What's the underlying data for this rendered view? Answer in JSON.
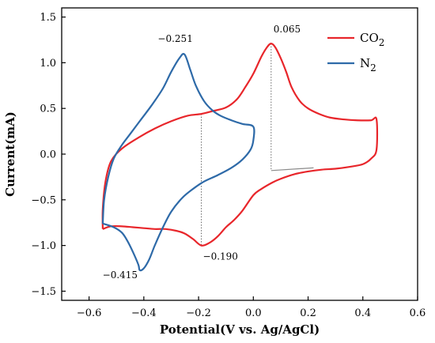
{
  "chart_data": {
    "type": "line",
    "xlabel": "Potential(V vs. Ag/AgCl)",
    "ylabel": "Current(mA)",
    "xlim": [
      -0.7,
      0.6
    ],
    "ylim": [
      -1.6,
      1.6
    ],
    "x_ticks": [
      -0.6,
      -0.4,
      -0.2,
      0.0,
      0.2,
      0.4,
      0.6
    ],
    "x_tick_labels": [
      "−0.6",
      "−0.4",
      "−0.2",
      "0.0",
      "0.2",
      "0.4",
      "0.6"
    ],
    "y_ticks": [
      -1.5,
      -1.0,
      -0.5,
      0.0,
      0.5,
      1.0,
      1.5
    ],
    "y_tick_labels": [
      "−1.5",
      "−1.0",
      "−0.5",
      "0.0",
      "0.5",
      "1.0",
      "1.5"
    ],
    "grid": false,
    "legend_position": "top-right",
    "series": [
      {
        "name": "CO2",
        "color": "#e8262b",
        "points": [
          [
            -0.55,
            -0.82
          ],
          [
            -0.52,
            -0.79
          ],
          [
            -0.48,
            -0.79
          ],
          [
            -0.44,
            -0.8
          ],
          [
            -0.4,
            -0.81
          ],
          [
            -0.36,
            -0.82
          ],
          [
            -0.32,
            -0.82
          ],
          [
            -0.28,
            -0.84
          ],
          [
            -0.25,
            -0.87
          ],
          [
            -0.22,
            -0.93
          ],
          [
            -0.19,
            -1.0
          ],
          [
            -0.16,
            -0.97
          ],
          [
            -0.13,
            -0.9
          ],
          [
            -0.1,
            -0.8
          ],
          [
            -0.07,
            -0.72
          ],
          [
            -0.04,
            -0.62
          ],
          [
            0.0,
            -0.45
          ],
          [
            0.03,
            -0.38
          ],
          [
            0.07,
            -0.31
          ],
          [
            0.1,
            -0.27
          ],
          [
            0.15,
            -0.22
          ],
          [
            0.2,
            -0.19
          ],
          [
            0.25,
            -0.17
          ],
          [
            0.3,
            -0.16
          ],
          [
            0.35,
            -0.14
          ],
          [
            0.4,
            -0.11
          ],
          [
            0.43,
            -0.05
          ],
          [
            0.45,
            0.05
          ],
          [
            0.45,
            0.38
          ],
          [
            0.43,
            0.37
          ],
          [
            0.38,
            0.37
          ],
          [
            0.33,
            0.38
          ],
          [
            0.28,
            0.4
          ],
          [
            0.24,
            0.44
          ],
          [
            0.2,
            0.5
          ],
          [
            0.17,
            0.58
          ],
          [
            0.14,
            0.73
          ],
          [
            0.12,
            0.9
          ],
          [
            0.1,
            1.05
          ],
          [
            0.08,
            1.17
          ],
          [
            0.065,
            1.21
          ],
          [
            0.05,
            1.17
          ],
          [
            0.03,
            1.07
          ],
          [
            0.0,
            0.88
          ],
          [
            -0.03,
            0.73
          ],
          [
            -0.06,
            0.6
          ],
          [
            -0.1,
            0.51
          ],
          [
            -0.15,
            0.47
          ],
          [
            -0.19,
            0.44
          ],
          [
            -0.24,
            0.42
          ],
          [
            -0.3,
            0.36
          ],
          [
            -0.36,
            0.28
          ],
          [
            -0.42,
            0.18
          ],
          [
            -0.48,
            0.06
          ],
          [
            -0.52,
            -0.08
          ],
          [
            -0.54,
            -0.3
          ],
          [
            -0.55,
            -0.6
          ],
          [
            -0.55,
            -0.82
          ]
        ]
      },
      {
        "name": "N2",
        "color": "#2e6aa8",
        "points": [
          [
            -0.55,
            -0.76
          ],
          [
            -0.51,
            -0.8
          ],
          [
            -0.48,
            -0.86
          ],
          [
            -0.46,
            -0.95
          ],
          [
            -0.44,
            -1.07
          ],
          [
            -0.42,
            -1.21
          ],
          [
            -0.415,
            -1.27
          ],
          [
            -0.4,
            -1.25
          ],
          [
            -0.38,
            -1.15
          ],
          [
            -0.36,
            -1.0
          ],
          [
            -0.33,
            -0.8
          ],
          [
            -0.3,
            -0.63
          ],
          [
            -0.26,
            -0.48
          ],
          [
            -0.22,
            -0.38
          ],
          [
            -0.18,
            -0.3
          ],
          [
            -0.13,
            -0.23
          ],
          [
            -0.08,
            -0.15
          ],
          [
            -0.04,
            -0.06
          ],
          [
            -0.01,
            0.05
          ],
          [
            0.0,
            0.15
          ],
          [
            0.0,
            0.3
          ],
          [
            -0.04,
            0.33
          ],
          [
            -0.08,
            0.37
          ],
          [
            -0.12,
            0.42
          ],
          [
            -0.15,
            0.48
          ],
          [
            -0.18,
            0.58
          ],
          [
            -0.21,
            0.75
          ],
          [
            -0.23,
            0.92
          ],
          [
            -0.251,
            1.09
          ],
          [
            -0.27,
            1.05
          ],
          [
            -0.3,
            0.9
          ],
          [
            -0.33,
            0.72
          ],
          [
            -0.37,
            0.54
          ],
          [
            -0.41,
            0.38
          ],
          [
            -0.45,
            0.22
          ],
          [
            -0.48,
            0.1
          ],
          [
            -0.51,
            -0.05
          ],
          [
            -0.53,
            -0.25
          ],
          [
            -0.545,
            -0.5
          ],
          [
            -0.55,
            -0.76
          ]
        ]
      }
    ],
    "dotted_guides": [
      {
        "x": 0.065,
        "y1": 1.21,
        "y2": -0.18
      },
      {
        "x": -0.19,
        "y1": 0.44,
        "y2": -1.0
      }
    ],
    "baselines": [
      {
        "x1": 0.065,
        "y1": -0.18,
        "x2": 0.22,
        "y2": -0.15
      }
    ],
    "annotations": [
      {
        "text": "0.065",
        "x": 0.065,
        "y": 1.21,
        "anchor": "above"
      },
      {
        "text": "−0.251",
        "x": -0.251,
        "y": 1.09,
        "anchor": "above-left"
      },
      {
        "text": "−0.190",
        "x": -0.19,
        "y": -1.0,
        "anchor": "below-right"
      },
      {
        "text": "−0.415",
        "x": -0.415,
        "y": -1.27,
        "anchor": "left"
      }
    ],
    "legend": [
      {
        "base": "CO",
        "sub": "2",
        "color": "#e8262b"
      },
      {
        "base": "N",
        "sub": "2",
        "color": "#2e6aa8"
      }
    ]
  }
}
